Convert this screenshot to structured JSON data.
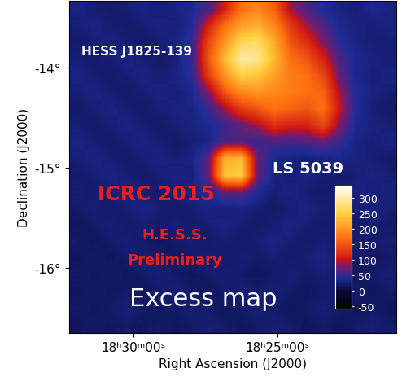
{
  "chart_data": {
    "type": "heatmap",
    "x_label": "Right Ascension (J2000)",
    "y_label": "Declination (J2000)",
    "xlim": [
      278.06,
      275.22
    ],
    "ylim": [
      -16.65,
      -13.34
    ],
    "xticks": [
      {
        "value": 277.5,
        "label": "18ʰ30ᵐ00ˢ"
      },
      {
        "value": 276.25,
        "label": "18ʰ25ᵐ00ˢ"
      }
    ],
    "yticks": [
      {
        "value": -14,
        "label": "-14°"
      },
      {
        "value": -15,
        "label": "-15°"
      },
      {
        "value": -16,
        "label": "-16°"
      }
    ],
    "cells": [
      [
        30,
        25,
        20,
        25,
        30,
        25,
        30,
        35,
        60,
        110,
        170,
        190,
        160,
        90,
        60,
        40,
        30,
        25,
        35,
        30
      ],
      [
        25,
        30,
        25,
        20,
        25,
        30,
        25,
        40,
        110,
        170,
        210,
        220,
        190,
        130,
        90,
        60,
        35,
        30,
        25,
        30
      ],
      [
        20,
        25,
        30,
        25,
        20,
        25,
        30,
        50,
        140,
        200,
        260,
        270,
        220,
        150,
        120,
        80,
        45,
        30,
        25,
        25
      ],
      [
        25,
        20,
        25,
        30,
        25,
        20,
        25,
        50,
        150,
        230,
        300,
        290,
        230,
        170,
        150,
        110,
        60,
        35,
        30,
        25
      ],
      [
        30,
        25,
        20,
        25,
        30,
        25,
        30,
        45,
        130,
        200,
        250,
        240,
        210,
        180,
        170,
        140,
        70,
        35,
        25,
        30
      ],
      [
        25,
        30,
        25,
        20,
        25,
        30,
        25,
        35,
        80,
        150,
        190,
        200,
        190,
        180,
        170,
        160,
        90,
        40,
        30,
        25
      ],
      [
        20,
        25,
        30,
        25,
        20,
        25,
        30,
        30,
        50,
        90,
        130,
        150,
        170,
        160,
        150,
        170,
        100,
        40,
        25,
        20
      ],
      [
        25,
        20,
        25,
        30,
        25,
        20,
        25,
        30,
        35,
        50,
        70,
        90,
        120,
        110,
        110,
        140,
        80,
        35,
        30,
        25
      ],
      [
        30,
        25,
        20,
        25,
        30,
        25,
        20,
        25,
        30,
        60,
        60,
        50,
        60,
        55,
        60,
        70,
        50,
        30,
        25,
        30
      ],
      [
        25,
        30,
        25,
        20,
        25,
        30,
        25,
        30,
        70,
        220,
        230,
        70,
        35,
        30,
        25,
        30,
        35,
        30,
        25,
        20
      ],
      [
        20,
        25,
        30,
        25,
        20,
        25,
        30,
        25,
        70,
        240,
        250,
        70,
        30,
        25,
        30,
        25,
        20,
        25,
        30,
        25
      ],
      [
        25,
        20,
        25,
        30,
        25,
        20,
        25,
        30,
        40,
        70,
        70,
        40,
        25,
        30,
        25,
        20,
        25,
        30,
        25,
        30
      ],
      [
        20,
        25,
        20,
        25,
        30,
        25,
        20,
        25,
        30,
        25,
        30,
        25,
        20,
        25,
        30,
        25,
        20,
        25,
        30,
        25
      ],
      [
        15,
        20,
        25,
        20,
        25,
        20,
        25,
        20,
        25,
        30,
        25,
        20,
        25,
        30,
        25,
        20,
        25,
        20,
        25,
        20
      ],
      [
        20,
        15,
        20,
        25,
        20,
        15,
        20,
        25,
        20,
        25,
        20,
        25,
        30,
        25,
        20,
        25,
        20,
        25,
        20,
        25
      ],
      [
        15,
        20,
        15,
        20,
        25,
        20,
        15,
        20,
        25,
        20,
        25,
        20,
        25,
        20,
        25,
        30,
        25,
        20,
        15,
        20
      ],
      [
        20,
        15,
        20,
        15,
        20,
        25,
        20,
        15,
        20,
        25,
        20,
        15,
        20,
        25,
        20,
        25,
        20,
        15,
        20,
        25
      ],
      [
        15,
        20,
        15,
        20,
        15,
        20,
        25,
        20,
        15,
        20,
        25,
        20,
        25,
        20,
        15,
        20,
        25,
        20,
        15,
        20
      ],
      [
        20,
        15,
        20,
        25,
        20,
        15,
        20,
        25,
        20,
        15,
        20,
        25,
        20,
        15,
        20,
        25,
        20,
        15,
        20,
        15
      ],
      [
        15,
        20,
        15,
        20,
        15,
        20,
        15,
        20,
        25,
        20,
        15,
        20,
        25,
        20,
        15,
        20,
        15,
        20,
        25,
        20
      ]
    ],
    "colorbar": {
      "range": [
        -60,
        340
      ],
      "ticks": [
        -50,
        0,
        50,
        100,
        150,
        200,
        250,
        300
      ]
    },
    "annotations": [
      "HESS J1825-139",
      "LS 5039",
      "ICRC 2015",
      "H.E.S.S.",
      "Preliminary",
      "Excess map"
    ]
  }
}
